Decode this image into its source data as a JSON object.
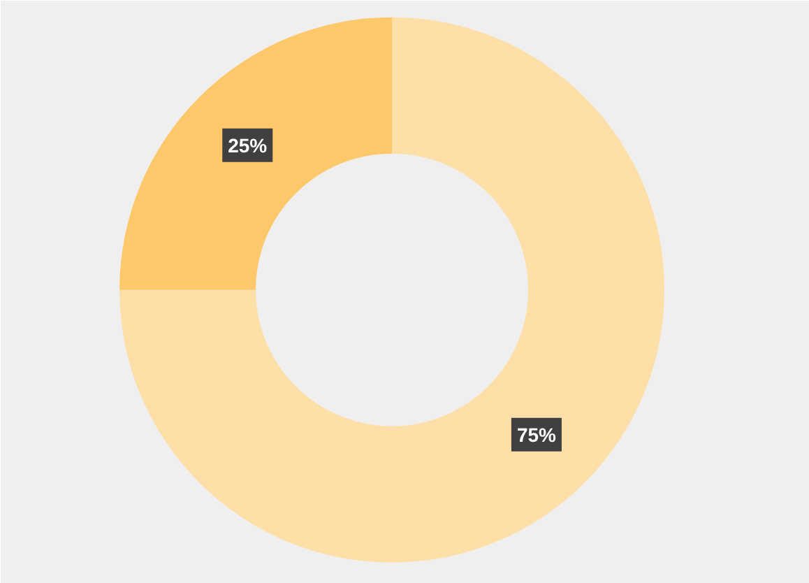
{
  "chart_data": {
    "type": "donut",
    "categories": [
      null,
      null
    ],
    "values": [
      75,
      25
    ],
    "colors": [
      "#ffdfa8",
      "#ffc96b"
    ],
    "value_labels": [
      "75%",
      "25%"
    ]
  }
}
